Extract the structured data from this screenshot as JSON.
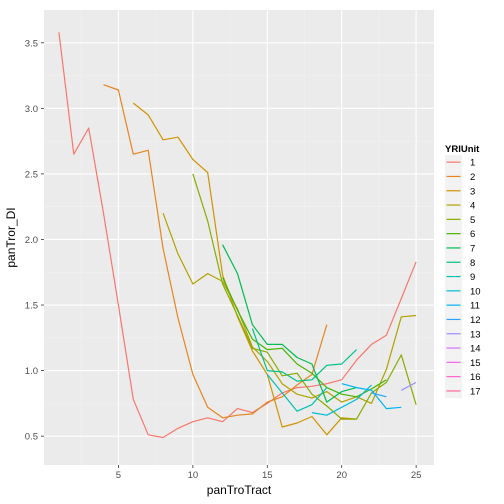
{
  "chart_data": {
    "type": "line",
    "xlabel": "panTroTract",
    "ylabel": "panTror_DI",
    "xlim": [
      0,
      26.2
    ],
    "ylim": [
      0.28,
      3.75
    ],
    "x_ticks": [
      5,
      10,
      15,
      20,
      25
    ],
    "y_ticks": [
      0.5,
      1.0,
      1.5,
      2.0,
      2.5,
      3.0,
      3.5
    ],
    "y_tick_labels": [
      "0.5",
      "1.0",
      "1.5",
      "2.0",
      "2.5",
      "3.0",
      "3.5"
    ],
    "grid": true,
    "legend": {
      "title": "YRIUnit",
      "placement": "right"
    },
    "series": [
      {
        "name": "1",
        "color": "#F8766D",
        "points": [
          [
            1,
            3.58
          ],
          [
            2,
            2.65
          ],
          [
            3,
            2.85
          ],
          [
            4,
            2.2
          ],
          [
            5,
            1.5
          ],
          [
            6,
            0.78
          ],
          [
            7,
            0.51
          ],
          [
            8,
            0.49
          ],
          [
            9,
            0.56
          ],
          [
            10,
            0.61
          ],
          [
            11,
            0.64
          ],
          [
            12,
            0.61
          ],
          [
            13,
            0.71
          ],
          [
            14,
            0.68
          ],
          [
            15,
            0.75
          ],
          [
            16,
            0.83
          ],
          [
            17,
            0.87
          ],
          [
            18,
            0.88
          ],
          [
            19,
            0.9
          ],
          [
            20,
            0.93
          ],
          [
            21,
            1.08
          ],
          [
            22,
            1.2
          ],
          [
            23,
            1.27
          ],
          [
            24,
            1.55
          ],
          [
            25,
            1.83
          ]
        ]
      },
      {
        "name": "2",
        "color": "#E7851E",
        "points": [
          [
            4,
            3.18
          ],
          [
            5,
            3.14
          ],
          [
            6,
            2.65
          ],
          [
            7,
            2.68
          ],
          [
            8,
            1.93
          ],
          [
            9,
            1.4
          ],
          [
            10,
            0.97
          ],
          [
            11,
            0.72
          ],
          [
            12,
            0.64
          ],
          [
            13,
            0.66
          ],
          [
            14,
            0.67
          ],
          [
            15,
            0.76
          ],
          [
            16,
            0.8
          ],
          [
            17,
            0.89
          ],
          [
            18,
            0.97
          ],
          [
            19,
            1.35
          ]
        ]
      },
      {
        "name": "3",
        "color": "#D09400",
        "points": [
          [
            6,
            3.04
          ],
          [
            7,
            2.95
          ],
          [
            8,
            2.76
          ],
          [
            9,
            2.78
          ],
          [
            10,
            2.61
          ],
          [
            11,
            2.51
          ],
          [
            12,
            1.73
          ],
          [
            13,
            1.41
          ],
          [
            14,
            1.15
          ],
          [
            15,
            0.97
          ],
          [
            16,
            0.57
          ],
          [
            17,
            0.6
          ],
          [
            18,
            0.65
          ],
          [
            19,
            0.51
          ],
          [
            20,
            0.64
          ],
          [
            21,
            0.63
          ]
        ]
      },
      {
        "name": "4",
        "color": "#B2A100",
        "points": [
          [
            8,
            2.2
          ],
          [
            9,
            1.89
          ],
          [
            10,
            1.66
          ],
          [
            11,
            1.74
          ],
          [
            12,
            1.68
          ],
          [
            13,
            1.47
          ],
          [
            14,
            1.18
          ],
          [
            15,
            1.07
          ],
          [
            16,
            0.9
          ],
          [
            17,
            0.82
          ],
          [
            18,
            0.79
          ],
          [
            19,
            0.84
          ],
          [
            20,
            0.76
          ],
          [
            21,
            0.8
          ],
          [
            22,
            0.75
          ],
          [
            23,
            1.01
          ],
          [
            24,
            1.41
          ],
          [
            25,
            1.42
          ]
        ]
      },
      {
        "name": "5",
        "color": "#89AC00",
        "points": [
          [
            10,
            2.5
          ],
          [
            11,
            2.14
          ],
          [
            12,
            1.66
          ],
          [
            13,
            1.42
          ],
          [
            14,
            1.17
          ],
          [
            15,
            1.14
          ],
          [
            16,
            0.96
          ],
          [
            17,
            0.98
          ],
          [
            18,
            0.82
          ],
          [
            19,
            0.73
          ],
          [
            20,
            0.63
          ],
          [
            21,
            0.63
          ],
          [
            22,
            0.83
          ],
          [
            23,
            0.91
          ],
          [
            24,
            1.12
          ],
          [
            25,
            0.74
          ]
        ]
      },
      {
        "name": "6",
        "color": "#45B500",
        "points": [
          [
            12,
            1.71
          ],
          [
            13,
            1.46
          ],
          [
            14,
            1.24
          ],
          [
            15,
            1.16
          ],
          [
            16,
            1.17
          ],
          [
            17,
            1.05
          ],
          [
            18,
            0.98
          ],
          [
            19,
            0.87
          ],
          [
            20,
            0.82
          ],
          [
            21,
            0.8
          ],
          [
            22,
            0.86
          ],
          [
            23,
            0.93
          ]
        ]
      },
      {
        "name": "7",
        "color": "#00BC51",
        "points": [
          [
            12,
            1.96
          ],
          [
            13,
            1.74
          ],
          [
            14,
            1.35
          ],
          [
            15,
            1.2
          ],
          [
            16,
            1.2
          ],
          [
            17,
            1.1
          ],
          [
            18,
            1.05
          ],
          [
            19,
            0.76
          ],
          [
            20,
            0.84
          ],
          [
            21,
            0.87
          ]
        ]
      },
      {
        "name": "8",
        "color": "#00C087",
        "points": [
          [
            14,
            1.32
          ],
          [
            15,
            1.0
          ],
          [
            16,
            0.99
          ],
          [
            17,
            0.92
          ],
          [
            18,
            0.93
          ],
          [
            19,
            1.04
          ],
          [
            20,
            1.05
          ],
          [
            21,
            1.16
          ]
        ]
      },
      {
        "name": "9",
        "color": "#00C0B2",
        "points": [
          [
            15,
            0.97
          ],
          [
            16,
            0.83
          ],
          [
            17,
            0.69
          ],
          [
            18,
            0.74
          ],
          [
            19,
            0.87
          ]
        ]
      },
      {
        "name": "10",
        "color": "#00BCD6",
        "points": [
          [
            18,
            0.68
          ],
          [
            19,
            0.66
          ],
          [
            20,
            0.72
          ],
          [
            21,
            0.78
          ],
          [
            22,
            0.89
          ]
        ]
      },
      {
        "name": "11",
        "color": "#00B3F2",
        "points": [
          [
            20,
            0.9
          ],
          [
            21,
            0.87
          ],
          [
            22,
            0.85
          ],
          [
            23,
            0.71
          ],
          [
            24,
            0.72
          ]
        ]
      },
      {
        "name": "12",
        "color": "#29A3FF",
        "points": [
          [
            22,
            0.83
          ],
          [
            23,
            0.8
          ]
        ]
      },
      {
        "name": "13",
        "color": "#9C8DFF",
        "points": [
          [
            24,
            0.85
          ],
          [
            25,
            0.91
          ]
        ]
      },
      {
        "name": "14",
        "color": "#D277FF",
        "points": []
      },
      {
        "name": "15",
        "color": "#F166E8",
        "points": []
      },
      {
        "name": "16",
        "color": "#FF61C7",
        "points": []
      },
      {
        "name": "17",
        "color": "#FF689E",
        "points": []
      }
    ]
  }
}
